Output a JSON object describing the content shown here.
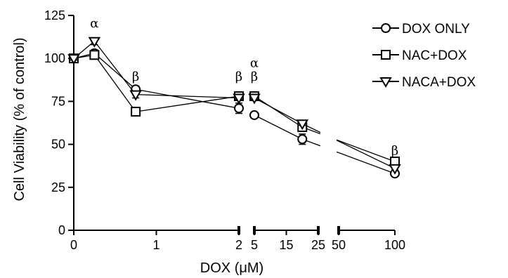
{
  "chart_data": {
    "type": "line",
    "xlabel": "DOX (μM)",
    "ylabel": "Cell Viability (% of control)",
    "ylim": [
      0,
      125
    ],
    "yticks": [
      0,
      25,
      50,
      75,
      100,
      125
    ],
    "axis_breaks": true,
    "segments": [
      {
        "xlim": [
          0,
          2
        ],
        "ticks": [
          0,
          1,
          2
        ],
        "tick_labels": [
          "0",
          "1",
          "2"
        ]
      },
      {
        "xlim": [
          5,
          25
        ],
        "ticks": [
          5,
          15,
          25
        ],
        "tick_labels": [
          "5",
          "15",
          "25"
        ]
      },
      {
        "xlim": [
          50,
          100
        ],
        "ticks": [
          50,
          100
        ],
        "tick_labels": [
          "50",
          "100"
        ]
      }
    ],
    "x": [
      0,
      0.25,
      0.75,
      2,
      5,
      20,
      100
    ],
    "series": [
      {
        "name": "DOX ONLY",
        "marker": "circle",
        "values": [
          100,
          103,
          82,
          71,
          67,
          53,
          33
        ],
        "errors": [
          1,
          2,
          2,
          3,
          1,
          3,
          1
        ]
      },
      {
        "name": "NAC+DOX",
        "marker": "square",
        "values": [
          100,
          102,
          69,
          78,
          78,
          60,
          40
        ],
        "errors": [
          1,
          1,
          1,
          1,
          1,
          2,
          1
        ]
      },
      {
        "name": "NACA+DOX",
        "marker": "triangle-down",
        "values": [
          100,
          110,
          79,
          77,
          77,
          62,
          36
        ],
        "errors": [
          1,
          2,
          2,
          1,
          1,
          1,
          1
        ]
      }
    ],
    "legend_position": "top-right",
    "annotations": [
      {
        "x": 0.25,
        "y": 118,
        "text": "α"
      },
      {
        "x": 0.75,
        "y": 87,
        "text": "β"
      },
      {
        "x": 2,
        "y": 87,
        "text": "β"
      },
      {
        "x": 5,
        "y": 95,
        "text": "α"
      },
      {
        "x": 5,
        "y": 87,
        "text": "β"
      },
      {
        "x": 100,
        "y": 44,
        "text": "β"
      }
    ]
  }
}
